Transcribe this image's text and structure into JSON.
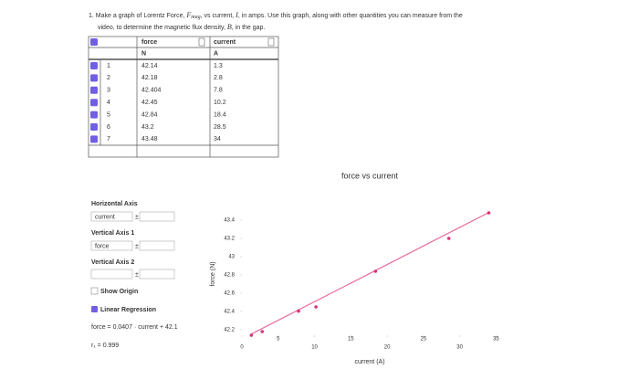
{
  "question": {
    "lead": "1. Make a graph of Lorentz Force,",
    "f": "F",
    "f_sub": "mag",
    "mid": ", vs current,",
    "i": "I",
    "tail": ", in amps. Use this graph, along with other quantities you can measure from the",
    "line2": "video, to determine the magnetic flux density,",
    "b": "B",
    "end": ", in the gap."
  },
  "table": {
    "headers": [
      "force",
      "current"
    ],
    "units": [
      "N",
      "A"
    ],
    "rows": [
      [
        "1",
        42.14,
        1.3
      ],
      [
        "2",
        42.18,
        2.8
      ],
      [
        "3",
        42.404,
        7.8
      ],
      [
        "4",
        42.45,
        10.2
      ],
      [
        "5",
        42.84,
        18.4
      ],
      [
        "6",
        43.2,
        28.5
      ],
      [
        "7",
        43.48,
        34
      ]
    ]
  },
  "panel": {
    "horizontal_axis": "Horizontal Axis",
    "h_select": "current",
    "vertical_axis_1": "Vertical Axis 1",
    "v1_select": "force",
    "vertical_axis_2": "Vertical Axis 2",
    "show_origin": "Show Origin",
    "linear_regression": "Linear Regression",
    "eq_lhs": "force =",
    "slope": 0.0407,
    "eq_mid": "· current +",
    "intercept": 42.1,
    "r_label": "r₁ =",
    "r": 0.999
  },
  "chart_data": {
    "type": "scatter",
    "title": "force vs current",
    "x_label": "current (A)",
    "y_label": "force (N)",
    "x": [
      1.3,
      2.8,
      7.8,
      10.2,
      18.4,
      28.5,
      34
    ],
    "values": [
      42.14,
      42.18,
      42.404,
      42.45,
      42.84,
      43.2,
      43.48
    ],
    "color": "#d6337a",
    "line_color": "#e86aa0",
    "xlim": [
      0,
      35.2
    ],
    "ylim": [
      42.14,
      43.56
    ],
    "xticks": [
      0,
      5,
      10,
      15,
      20,
      25,
      30,
      35
    ],
    "yticks": [
      42.2,
      42.4,
      42.6,
      42.8,
      43,
      43.2,
      43.4
    ],
    "grid": false
  }
}
